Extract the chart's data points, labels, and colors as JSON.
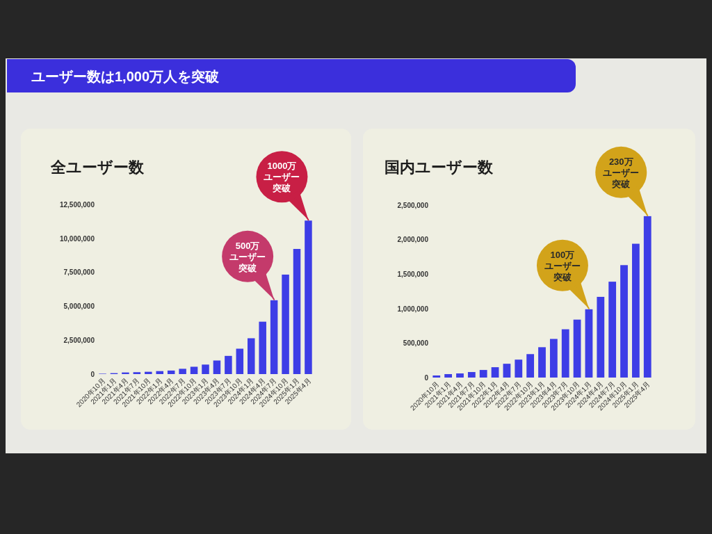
{
  "chart_data": [
    {
      "type": "bar",
      "title": "全ユーザー数",
      "categories": [
        "2020年10月",
        "2021年1月",
        "2021年4月",
        "2021年7月",
        "2021年10月",
        "2022年1月",
        "2022年4月",
        "2022年7月",
        "2022年10月",
        "2023年1月",
        "2023年4月",
        "2023年7月",
        "2023年10月",
        "2024年1月",
        "2024年4月",
        "2024年7月",
        "2024年10月",
        "2025年1月",
        "2025年4月"
      ],
      "values": [
        30000,
        70000,
        120000,
        140000,
        170000,
        220000,
        260000,
        390000,
        540000,
        700000,
        1000000,
        1340000,
        1870000,
        2640000,
        3860000,
        5440000,
        7330000,
        9220000,
        11310000
      ],
      "color": "#3d3de6",
      "ylim": [
        0,
        12500000
      ],
      "yticks": [
        {
          "value": 0,
          "label": "0"
        },
        {
          "value": 2500000,
          "label": "2,500,000"
        },
        {
          "value": 5000000,
          "label": "5,000,000"
        },
        {
          "value": 7500000,
          "label": "7,500,000"
        },
        {
          "value": 10000000,
          "label": "10,000,000"
        },
        {
          "value": 12500000,
          "label": "12,500,000"
        }
      ],
      "annotations": [
        "ユーザー数は1,000万人を突破",
        {
          "text": "500万ユーザー突破",
          "x": "2024年7月",
          "y": 5440000
        },
        {
          "text": "1000万ユーザー突破",
          "x": "2025年4月",
          "y": 11310000
        }
      ]
    },
    {
      "type": "bar",
      "title": "国内ユーザー数",
      "categories": [
        "2020年10月",
        "2021年1月",
        "2021年4月",
        "2021年7月",
        "2021年10月",
        "2022年1月",
        "2022年4月",
        "2022年7月",
        "2022年10月",
        "2023年1月",
        "2023年4月",
        "2023年7月",
        "2023年10月",
        "2024年1月",
        "2024年4月",
        "2024年7月",
        "2024年10月",
        "2025年1月",
        "2025年4月"
      ],
      "values": [
        30000,
        50000,
        60000,
        80000,
        110000,
        150000,
        200000,
        260000,
        340000,
        440000,
        560000,
        700000,
        840000,
        990000,
        1170000,
        1390000,
        1630000,
        1940000,
        2340000
      ],
      "color": "#3d3de6",
      "ylim": [
        0,
        2500000
      ],
      "yticks": [
        {
          "value": 0,
          "label": "0"
        },
        {
          "value": 500000,
          "label": "500,000"
        },
        {
          "value": 1000000,
          "label": "1,000,000"
        },
        {
          "value": 1500000,
          "label": "1,500,000"
        },
        {
          "value": 2000000,
          "label": "2,000,000"
        },
        {
          "value": 2500000,
          "label": "2,500,000"
        }
      ],
      "annotations": [
        {
          "text": "100万ユーザー突破",
          "x": "2024年1月",
          "y": 990000
        },
        {
          "text": "230万ユーザー突破",
          "x": "2025年4月",
          "y": 2340000
        }
      ]
    }
  ]
}
